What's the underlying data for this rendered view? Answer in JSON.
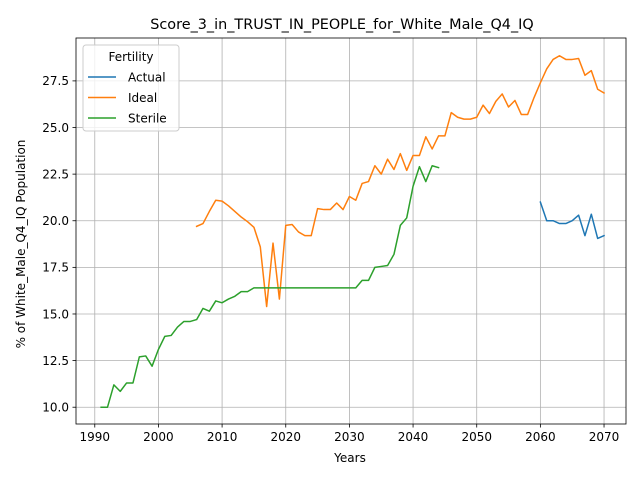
{
  "chart_data": {
    "type": "line",
    "title": "Score_3_in_TRUST_IN_PEOPLE_for_White_Male_Q4_IQ",
    "xlabel": "Years",
    "ylabel": "% of White_Male_Q4_IQ Population",
    "xlim": [
      1987.05,
      2073.45
    ],
    "ylim": [
      9.1,
      29.8
    ],
    "xticks": [
      1990,
      2000,
      2010,
      2020,
      2030,
      2040,
      2050,
      2060,
      2070
    ],
    "yticks": [
      10.0,
      12.5,
      15.0,
      17.5,
      20.0,
      22.5,
      25.0,
      27.5
    ],
    "xtick_labels": [
      "1990",
      "2000",
      "2010",
      "2020",
      "2030",
      "2040",
      "2050",
      "2060",
      "2070"
    ],
    "ytick_labels": [
      "10.0",
      "12.5",
      "15.0",
      "17.5",
      "20.0",
      "22.5",
      "25.0",
      "27.5"
    ],
    "grid": true,
    "legend": {
      "title": "Fertility",
      "placement": "upper-left"
    },
    "series": [
      {
        "name": "Actual",
        "color": "#1f77b4",
        "x": [
          2060,
          2061,
          2062,
          2063,
          2064,
          2065,
          2066,
          2067,
          2068,
          2069,
          2070
        ],
        "y": [
          21.0,
          20.0,
          20.0,
          19.85,
          19.85,
          20.0,
          20.3,
          19.2,
          20.35,
          19.05,
          19.2
        ]
      },
      {
        "name": "Ideal",
        "color": "#ff7f0e",
        "x": [
          2006,
          2007,
          2008,
          2009,
          2010,
          2011,
          2012,
          2013,
          2014,
          2015,
          2016,
          2017,
          2018,
          2019,
          2020,
          2021,
          2022,
          2023,
          2024,
          2025,
          2026,
          2027,
          2028,
          2029,
          2030,
          2031,
          2032,
          2033,
          2034,
          2035,
          2036,
          2037,
          2038,
          2039,
          2040,
          2041,
          2042,
          2043,
          2044,
          2045,
          2046,
          2047,
          2048,
          2049,
          2050,
          2051,
          2052,
          2053,
          2054,
          2055,
          2056,
          2057,
          2058,
          2059,
          2060,
          2061,
          2062,
          2063,
          2064,
          2065,
          2066,
          2067,
          2068,
          2069,
          2070
        ],
        "y": [
          19.7,
          19.85,
          20.5,
          21.1,
          21.05,
          20.8,
          20.5,
          20.2,
          19.95,
          19.65,
          18.6,
          15.4,
          18.8,
          15.8,
          19.75,
          19.8,
          19.4,
          19.2,
          19.2,
          20.65,
          20.6,
          20.6,
          20.95,
          20.6,
          21.3,
          21.1,
          22.0,
          22.1,
          22.95,
          22.5,
          23.3,
          22.75,
          23.6,
          22.7,
          23.5,
          23.5,
          24.5,
          23.85,
          24.55,
          24.55,
          25.8,
          25.55,
          25.45,
          25.45,
          25.55,
          26.2,
          25.75,
          26.4,
          26.8,
          26.1,
          26.45,
          25.7,
          25.7,
          26.6,
          27.4,
          28.15,
          28.65,
          28.85,
          28.65,
          28.65,
          28.7,
          27.8,
          28.05,
          27.05,
          26.85
        ]
      },
      {
        "name": "Sterile",
        "color": "#2ca02c",
        "x": [
          1991,
          1992,
          1993,
          1994,
          1995,
          1996,
          1997,
          1998,
          1999,
          2000,
          2001,
          2002,
          2003,
          2004,
          2005,
          2006,
          2007,
          2008,
          2009,
          2010,
          2011,
          2012,
          2013,
          2014,
          2015,
          2016,
          2017,
          2018,
          2019,
          2020,
          2021,
          2022,
          2023,
          2024,
          2025,
          2026,
          2027,
          2028,
          2029,
          2030,
          2031,
          2032,
          2033,
          2034,
          2035,
          2036,
          2037,
          2038,
          2039,
          2040,
          2041,
          2042,
          2043,
          2044
        ],
        "y": [
          10.0,
          10.0,
          11.2,
          10.85,
          11.3,
          11.3,
          12.7,
          12.75,
          12.2,
          13.1,
          13.8,
          13.85,
          14.3,
          14.6,
          14.6,
          14.7,
          15.3,
          15.15,
          15.7,
          15.6,
          15.8,
          15.95,
          16.2,
          16.2,
          16.4,
          16.4,
          16.4,
          16.4,
          16.4,
          16.4,
          16.4,
          16.4,
          16.4,
          16.4,
          16.4,
          16.4,
          16.4,
          16.4,
          16.4,
          16.4,
          16.4,
          16.8,
          16.8,
          17.5,
          17.55,
          17.6,
          18.2,
          19.75,
          20.15,
          21.85,
          22.9,
          22.1,
          22.95,
          22.85
        ]
      }
    ]
  }
}
